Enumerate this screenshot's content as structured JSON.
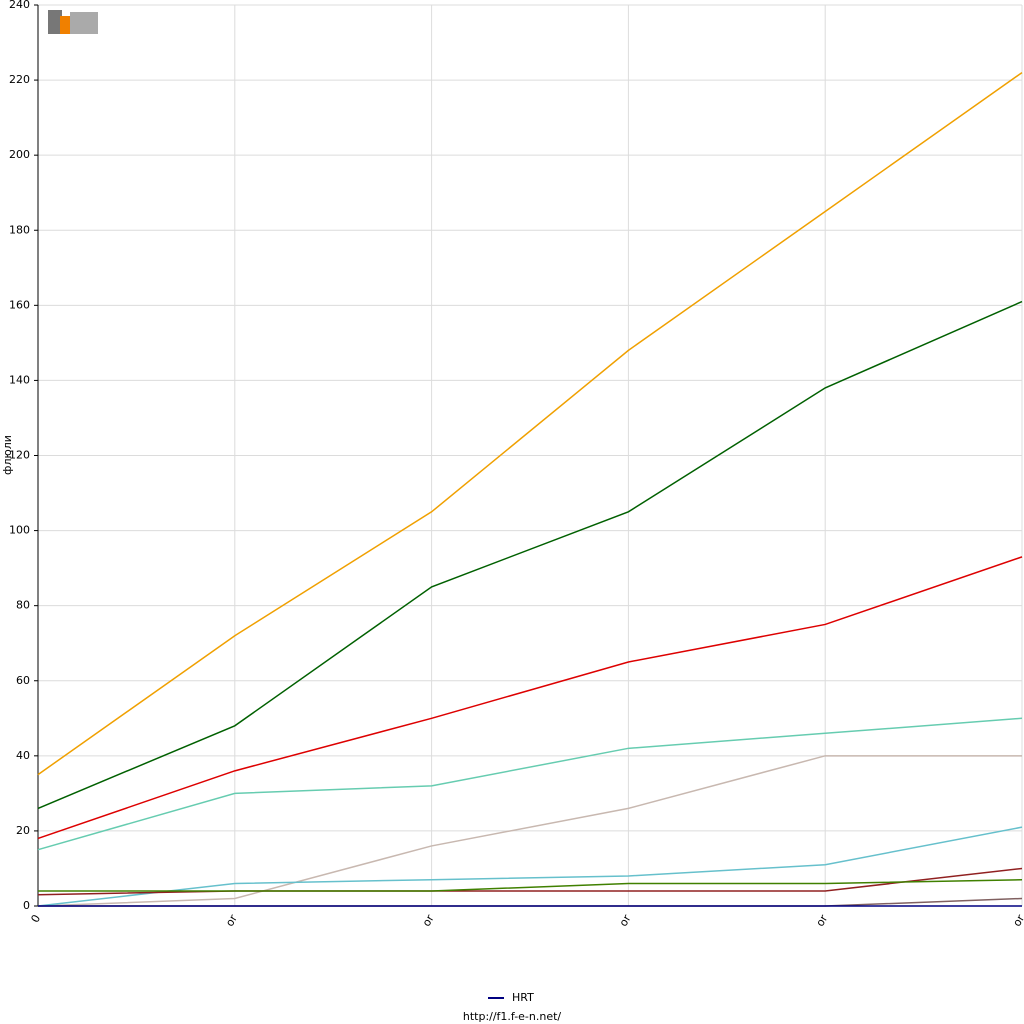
{
  "chart_data": {
    "type": "line",
    "y_label": "флюли",
    "footer": "http://f1.f-e-n.net/",
    "categories": [
      "0",
      "or",
      "or",
      "or",
      "or",
      "or"
    ],
    "ylim": [
      0,
      240
    ],
    "yticks": [
      0,
      20,
      40,
      60,
      80,
      100,
      120,
      140,
      160,
      180,
      200,
      220,
      240
    ],
    "grid": true,
    "legend": "bottom",
    "series": [
      {
        "color": "#f0a000",
        "values": [
          35,
          72,
          105,
          148,
          185,
          222
        ]
      },
      {
        "color": "#006000",
        "values": [
          26,
          48,
          85,
          105,
          138,
          161
        ]
      },
      {
        "color": "#dd0000",
        "values": [
          18,
          36,
          50,
          65,
          75,
          93
        ]
      },
      {
        "color": "#66ccb0",
        "values": [
          15,
          30,
          32,
          42,
          46,
          50
        ]
      },
      {
        "color": "#c8b8b0",
        "values": [
          0,
          2,
          16,
          26,
          40,
          40
        ]
      },
      {
        "color": "#66c0cc",
        "values": [
          0,
          6,
          7,
          8,
          11,
          21
        ]
      },
      {
        "color": "#902020",
        "values": [
          3,
          4,
          4,
          4,
          4,
          10
        ]
      },
      {
        "color": "#408000",
        "values": [
          4,
          4,
          4,
          6,
          6,
          7
        ]
      },
      {
        "color": "#806060",
        "values": [
          0,
          0,
          0,
          0,
          0,
          2
        ]
      },
      {
        "name": "HRT",
        "color": "#000080",
        "values": [
          0,
          0,
          0,
          0,
          0,
          0
        ]
      }
    ]
  }
}
